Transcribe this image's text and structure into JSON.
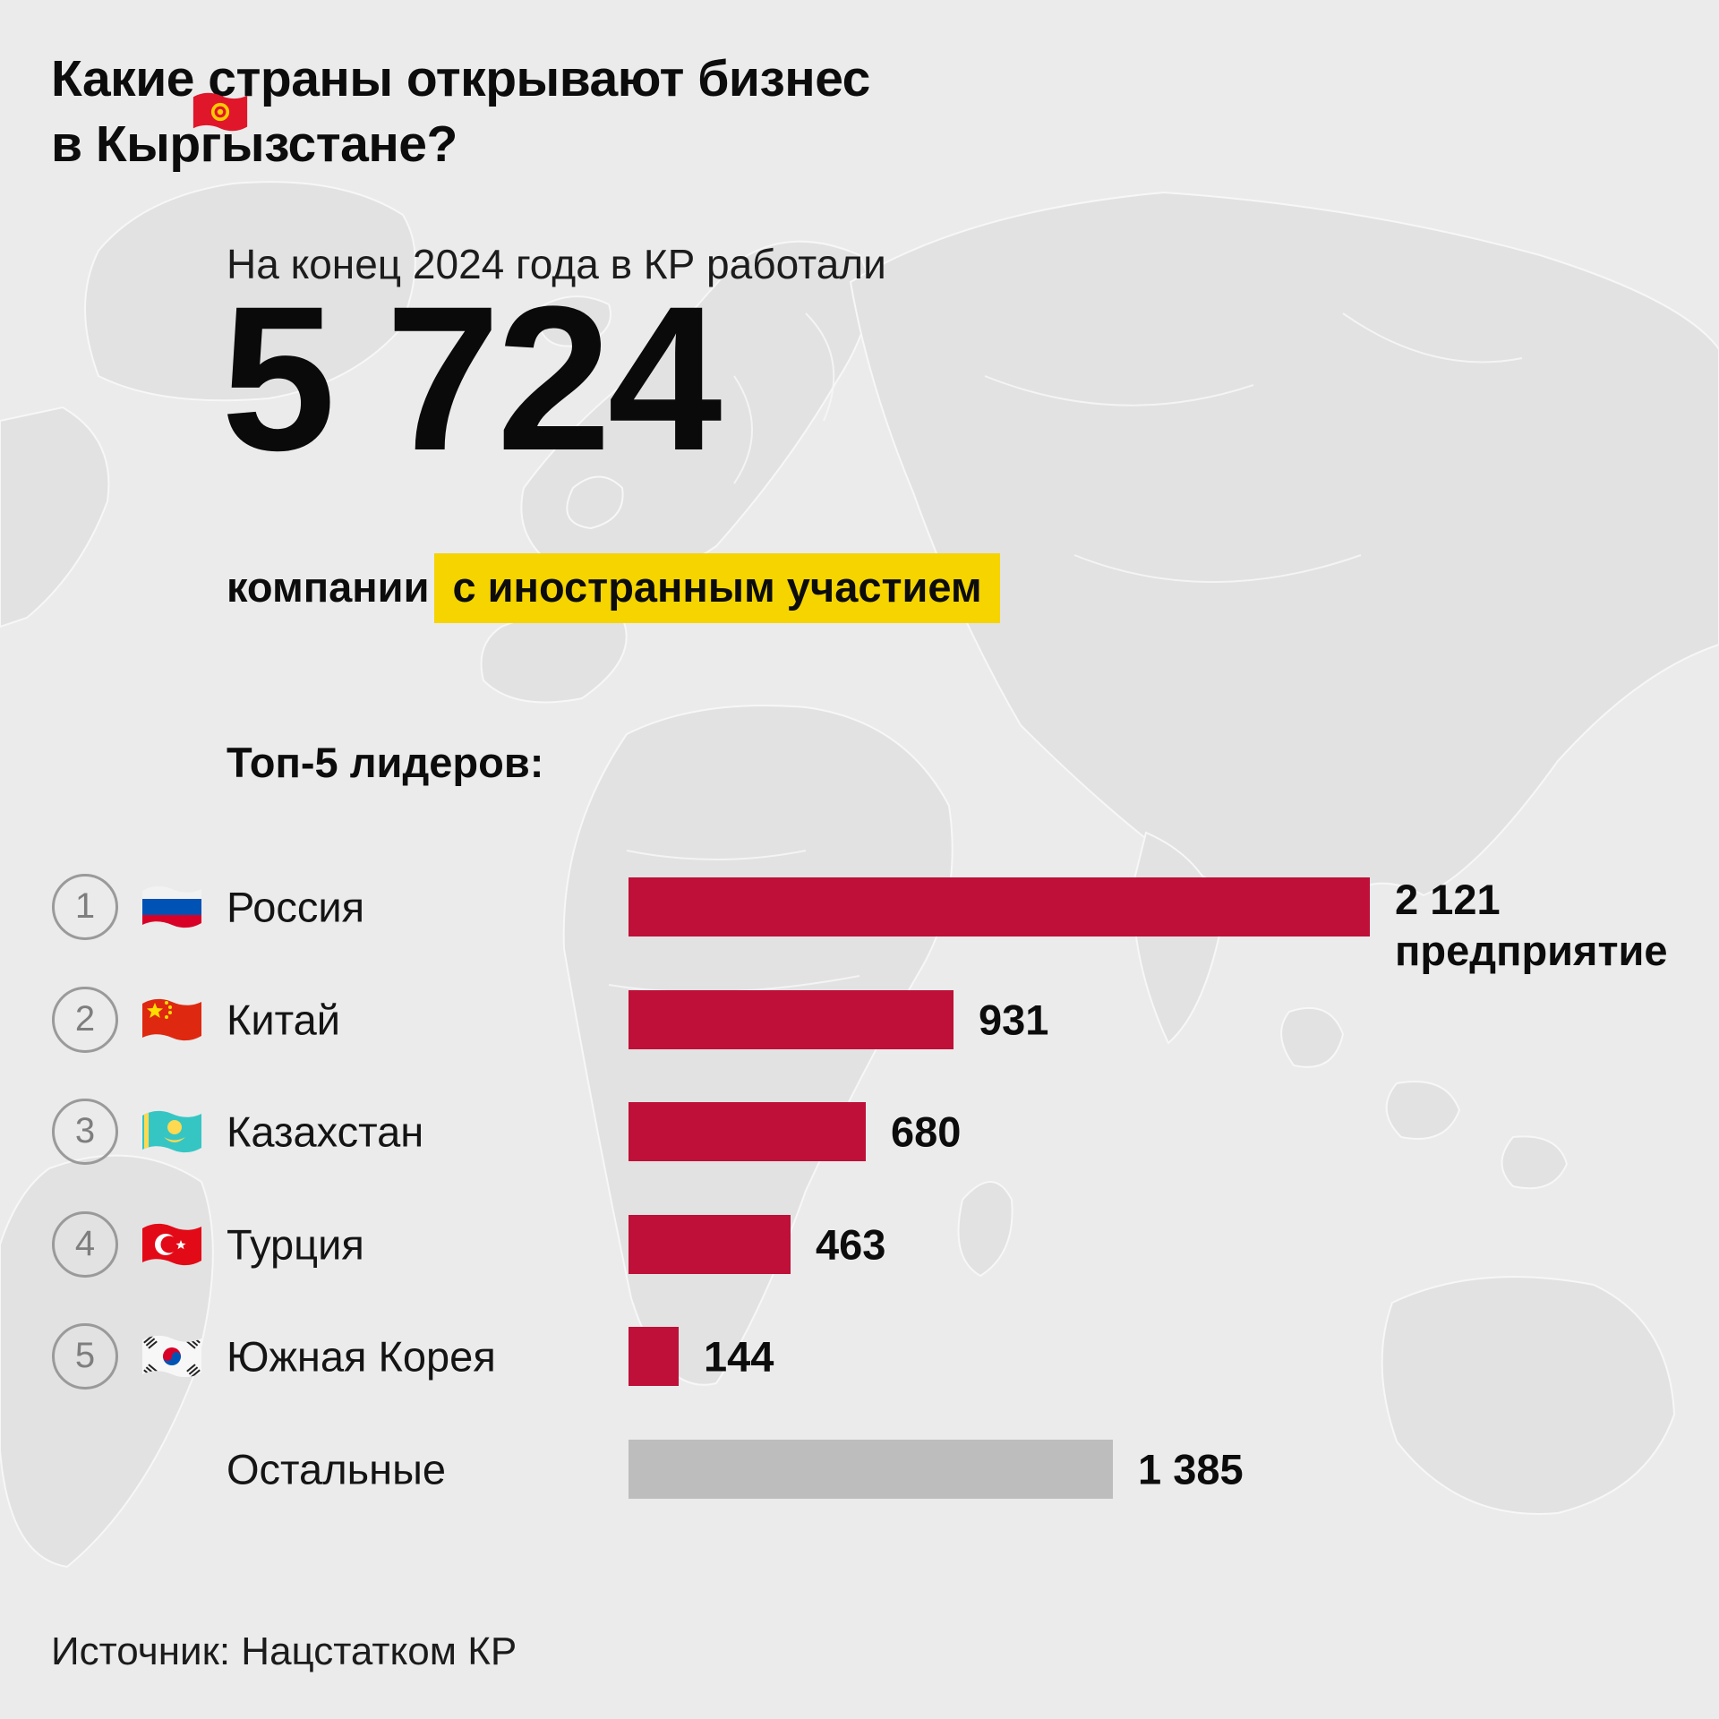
{
  "title": {
    "line1": "Какие страны открывают бизнес",
    "line2": "в Кыргызстане?",
    "flag_icon": "kyrgyzstan-flag"
  },
  "intro": {
    "subtitle": "На конец 2024 года в КР работали",
    "big_number": "5 724",
    "caption_plain": "компании",
    "caption_highlight": "с иностранным участием"
  },
  "chart_data": {
    "type": "bar",
    "orientation": "horizontal",
    "title": "Топ-5 лидеров:",
    "categories": [
      "Россия",
      "Китай",
      "Казахстан",
      "Турция",
      "Южная Корея",
      "Остальные"
    ],
    "values": [
      2121,
      931,
      680,
      463,
      144,
      1385
    ],
    "value_labels": [
      "2 121",
      "931",
      "680",
      "463",
      "144",
      "1 385"
    ],
    "unit_label": "предприятие",
    "ranks": [
      "1",
      "2",
      "3",
      "4",
      "5",
      null
    ],
    "flags": [
      "russia-flag",
      "china-flag",
      "kazakhstan-flag",
      "turkey-flag",
      "south-korea-flag",
      null
    ],
    "xmax": 2121,
    "xlim": [
      0,
      2121
    ],
    "grid": false,
    "legend": false,
    "bar_color": "#BE1038",
    "other_bar_color": "#BDBDBD"
  },
  "source": "Источник: Нацстатком КР",
  "colors": {
    "background": "#EBEBEB",
    "map_land": "#E2E2E2",
    "highlight": "#F5D400",
    "rank_circle": "#9A9A9A"
  }
}
